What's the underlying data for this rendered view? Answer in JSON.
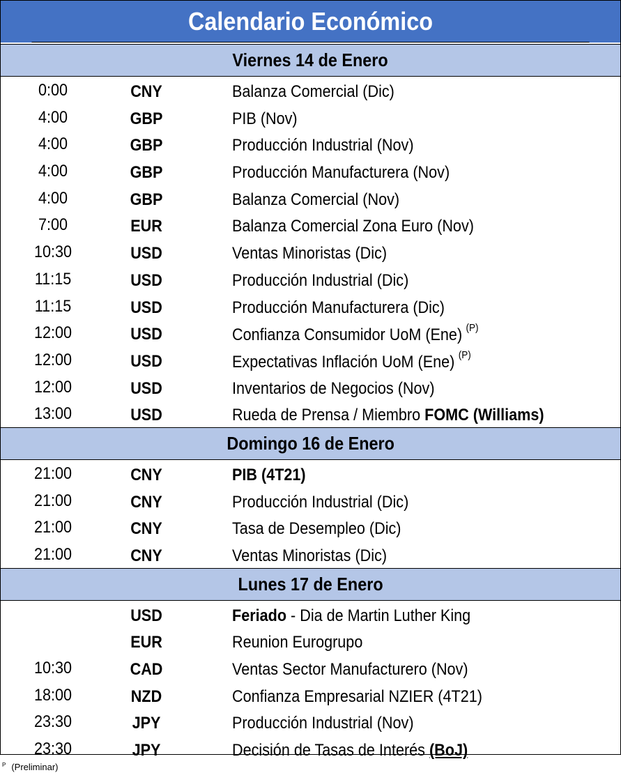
{
  "title": "Calendario Económico",
  "sections": [
    {
      "header": "Viernes 14 de Enero",
      "rows": [
        {
          "time": "0:00",
          "currency": "CNY",
          "event": "Balanza Comercial (Dic)"
        },
        {
          "time": "4:00",
          "currency": "GBP",
          "event": "PIB (Nov)"
        },
        {
          "time": "4:00",
          "currency": "GBP",
          "event": "Producción Industrial (Nov)"
        },
        {
          "time": "4:00",
          "currency": "GBP",
          "event": "Producción Manufacturera (Nov)"
        },
        {
          "time": "4:00",
          "currency": "GBP",
          "event": "Balanza Comercial (Nov)"
        },
        {
          "time": "7:00",
          "currency": "EUR",
          "event": "Balanza Comercial Zona Euro (Nov)"
        },
        {
          "time": "10:30",
          "currency": "USD",
          "event": "Ventas Minoristas (Dic)"
        },
        {
          "time": "11:15",
          "currency": "USD",
          "event": "Producción Industrial (Dic)"
        },
        {
          "time": "11:15",
          "currency": "USD",
          "event": "Producción Manufacturera (Dic)"
        },
        {
          "time": "12:00",
          "currency": "USD",
          "event": "Confianza Consumidor UoM (Ene)",
          "sup": "(P)"
        },
        {
          "time": "12:00",
          "currency": "USD",
          "event": "Expectativas Inflación UoM (Ene)",
          "sup": "(P)"
        },
        {
          "time": "12:00",
          "currency": "USD",
          "event": "Inventarios de Negocios (Nov)"
        },
        {
          "time": "13:00",
          "currency": "USD",
          "event": "Rueda de Prensa / Miembro ",
          "event_bold": "FOMC (Williams)"
        }
      ]
    },
    {
      "header": "Domingo 16 de Enero",
      "rows": [
        {
          "time": "21:00",
          "currency": "CNY",
          "event_bold_lead": "PIB (4T21)"
        },
        {
          "time": "21:00",
          "currency": "CNY",
          "event": "Producción Industrial (Dic)"
        },
        {
          "time": "21:00",
          "currency": "CNY",
          "event": "Tasa de Desempleo (Dic)"
        },
        {
          "time": "21:00",
          "currency": "CNY",
          "event": "Ventas Minoristas (Dic)"
        }
      ]
    },
    {
      "header": "Lunes 17 de Enero",
      "rows": [
        {
          "time": "",
          "currency": "USD",
          "event_bold_lead": "Feriado",
          "event": " - Dia de Martin Luther King"
        },
        {
          "time": "",
          "currency": "EUR",
          "event": "Reunion Eurogrupo"
        },
        {
          "time": "10:30",
          "currency": "CAD",
          "event": "Ventas Sector Manufacturero (Nov)"
        },
        {
          "time": "18:00",
          "currency": "NZD",
          "event": "Confianza Empresarial NZIER (4T21)"
        },
        {
          "time": "23:30",
          "currency": "JPY",
          "event": "Producción Industrial (Nov)"
        },
        {
          "time": "23:30",
          "currency": "JPY",
          "event": "Decisión de Tasas de Interés ",
          "event_bold_underline": "(BoJ)"
        }
      ]
    }
  ],
  "footnote": {
    "marker": "P",
    "text": "(Preliminar)"
  }
}
